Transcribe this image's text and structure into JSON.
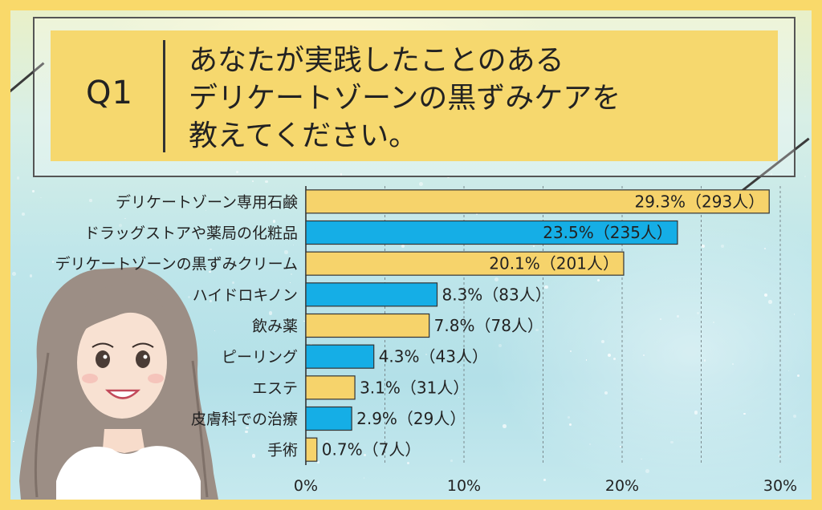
{
  "question": {
    "label": "Q1",
    "lines": [
      "あなたが実践したことのある",
      "デリケートゾーンの黒ずみケアを",
      "教えてください。"
    ]
  },
  "colors": {
    "frame": "#F9D96A",
    "bar_yellow": "#F6D36B",
    "bar_blue": "#15AEE6",
    "text": "#222222"
  },
  "chart_data": {
    "type": "bar",
    "orientation": "horizontal",
    "categories": [
      "デリケートゾーン専用石鹸",
      "ドラッグストアや薬局の化粧品",
      "デリケートゾーンの黒ずみクリーム",
      "ハイドロキノン",
      "飲み薬",
      "ピーリング",
      "エステ",
      "皮膚科での治療",
      "手術"
    ],
    "values": [
      29.3,
      23.5,
      20.1,
      8.3,
      7.8,
      4.3,
      3.1,
      2.9,
      0.7
    ],
    "data_labels": [
      "29.3%（293人）",
      "23.5%（235人）",
      "20.1%（201人）",
      "8.3%（83人）",
      "7.8%（78人）",
      "4.3%（43人）",
      "3.1%（31人）",
      "2.9%（29人）",
      "0.7%（7人）"
    ],
    "bar_colors": [
      "yellow",
      "blue",
      "yellow",
      "blue",
      "yellow",
      "blue",
      "yellow",
      "blue",
      "yellow"
    ],
    "x_ticks": [
      "0%",
      "10%",
      "20%",
      "30%"
    ],
    "xlim": [
      0,
      30
    ],
    "gridlines": true,
    "legend": "none"
  }
}
